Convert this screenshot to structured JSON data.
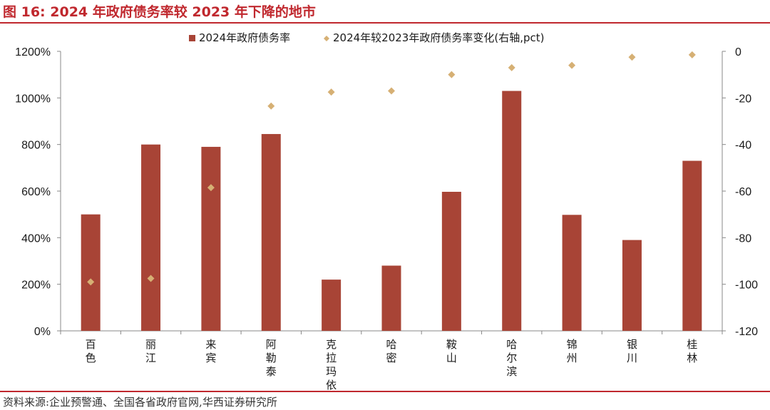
{
  "figure": {
    "title": "图 16:  2024 年政府债务率较 2023 年下降的地市",
    "source": "资料来源:企业预警通、全国各省政府官网,华西证券研究所"
  },
  "colors": {
    "accent": "#c0282e",
    "bar": "#a84436",
    "marker": "#d6b074",
    "axis": "#888888"
  },
  "chart_data": {
    "type": "bar",
    "categories": [
      "百色",
      "丽江",
      "来宾",
      "阿勒泰",
      "克拉玛依",
      "哈密",
      "鞍山",
      "哈尔滨",
      "锦州",
      "银川",
      "桂林"
    ],
    "series": [
      {
        "name": "2024年政府债务率",
        "type": "bar",
        "axis": "left",
        "values": [
          500,
          800,
          790,
          845,
          220,
          280,
          597,
          1030,
          498,
          390,
          730
        ]
      },
      {
        "name": "2024年较2023年政府债务率变化(右轴,pct)",
        "type": "scatter",
        "axis": "right",
        "marker": "diamond",
        "values": [
          -99,
          -97.5,
          -58.5,
          -23.5,
          -17.5,
          -17,
          -10,
          -7,
          -6,
          -2.5,
          -1.5
        ]
      }
    ],
    "y_left": {
      "ylim": [
        0,
        1200
      ],
      "ticks": [
        "0%",
        "200%",
        "400%",
        "600%",
        "800%",
        "1000%",
        "1200%"
      ],
      "tick_values": [
        0,
        200,
        400,
        600,
        800,
        1000,
        1200
      ]
    },
    "y_right": {
      "ylim": [
        -120,
        0
      ],
      "ticks": [
        "-120",
        "-100",
        "-80",
        "-60",
        "-40",
        "-20",
        "0"
      ],
      "tick_values": [
        -120,
        -100,
        -80,
        -60,
        -40,
        -20,
        0
      ]
    },
    "legend": "top-center",
    "grid": false
  }
}
